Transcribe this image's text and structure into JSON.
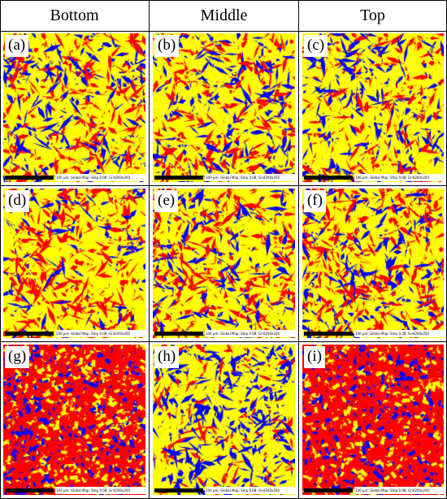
{
  "columns": [
    "Bottom",
    "Middle",
    "Top"
  ],
  "colors": {
    "yellow": "#ffff00",
    "red": "#ff0000",
    "blue": "#0000ff",
    "black": "#000000"
  },
  "panels": [
    {
      "label": "(a)",
      "row": 0,
      "col": 0,
      "mix": {
        "yellow": 0.55,
        "red": 0.25,
        "blue": 0.2
      },
      "style": "lath"
    },
    {
      "label": "(b)",
      "row": 0,
      "col": 1,
      "mix": {
        "yellow": 0.55,
        "red": 0.25,
        "blue": 0.2
      },
      "style": "lath"
    },
    {
      "label": "(c)",
      "row": 0,
      "col": 2,
      "mix": {
        "yellow": 0.55,
        "red": 0.2,
        "blue": 0.25
      },
      "style": "lath"
    },
    {
      "label": "(d)",
      "row": 1,
      "col": 0,
      "mix": {
        "yellow": 0.5,
        "red": 0.35,
        "blue": 0.15
      },
      "style": "lath"
    },
    {
      "label": "(e)",
      "row": 1,
      "col": 1,
      "mix": {
        "yellow": 0.5,
        "red": 0.3,
        "blue": 0.2
      },
      "style": "lath"
    },
    {
      "label": "(f)",
      "row": 1,
      "col": 2,
      "mix": {
        "yellow": 0.5,
        "red": 0.3,
        "blue": 0.2
      },
      "style": "lath"
    },
    {
      "label": "(g)",
      "row": 2,
      "col": 0,
      "mix": {
        "yellow": 0.2,
        "red": 0.65,
        "blue": 0.15
      },
      "style": "fine"
    },
    {
      "label": "(h)",
      "row": 2,
      "col": 1,
      "mix": {
        "yellow": 0.55,
        "red": 0.15,
        "blue": 0.3
      },
      "style": "lath"
    },
    {
      "label": "(i)",
      "row": 2,
      "col": 2,
      "mix": {
        "yellow": 0.15,
        "red": 0.7,
        "blue": 0.15
      },
      "style": "fine"
    }
  ],
  "scale_text": "100 µm; Global Map; Step 0.08; Grid200x200"
}
